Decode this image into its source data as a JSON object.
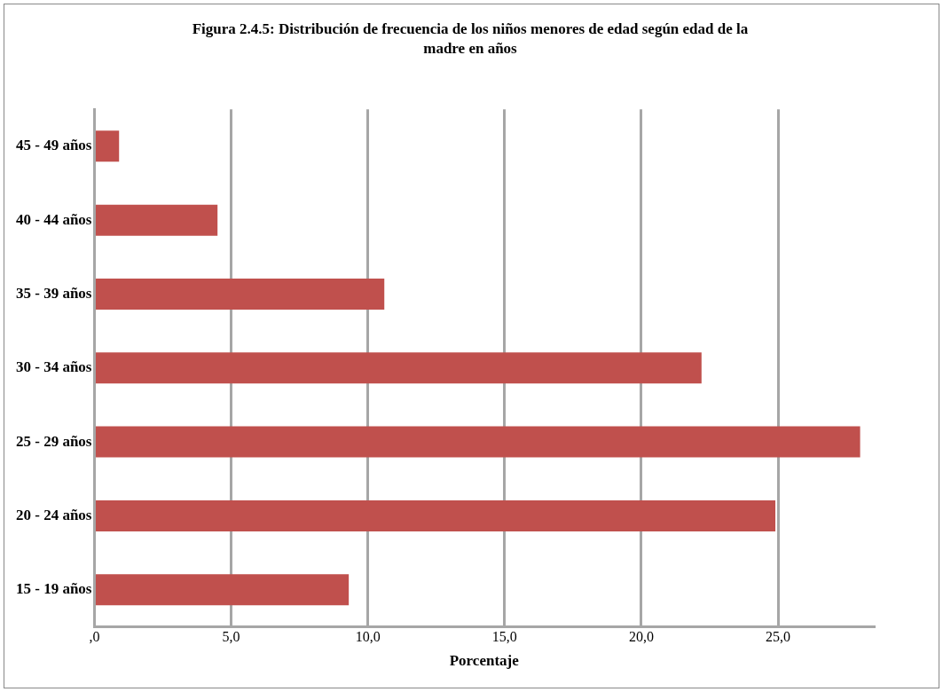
{
  "chart_data": {
    "type": "bar",
    "orientation": "horizontal",
    "title": "Figura 2.4.5: Distribución de frecuencia de los niños menores de edad según edad de la madre en años",
    "xlabel": "Porcentaje",
    "categories": [
      "45 - 49 años",
      "40 - 44 años",
      "35 - 39 años",
      "30 - 34 años",
      "25 - 29 años",
      "20 - 24 años",
      "15 - 19 años"
    ],
    "values": [
      0.9,
      4.5,
      10.6,
      22.2,
      28.0,
      24.9,
      9.3
    ],
    "color": "#c0504d",
    "xlim": [
      0,
      28.5
    ],
    "xticks": [
      {
        "value": 0,
        "label": ",0"
      },
      {
        "value": 5,
        "label": "5,0"
      },
      {
        "value": 10,
        "label": "10,0"
      },
      {
        "value": 15,
        "label": "15,0"
      },
      {
        "value": 20,
        "label": "20,0"
      },
      {
        "value": 25,
        "label": "25,0"
      }
    ],
    "grid": "x",
    "legend": false
  }
}
